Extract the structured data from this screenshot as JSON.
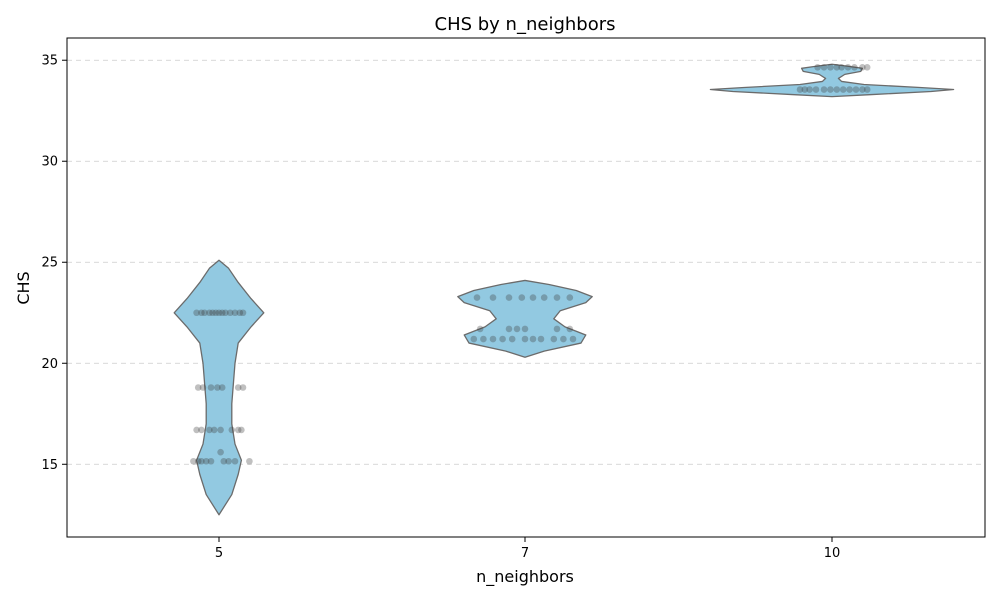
{
  "chart_data": {
    "type": "violin",
    "title": "CHS by n_neighbors",
    "xlabel": "n_neighbors",
    "ylabel": "CHS",
    "categories": [
      "5",
      "7",
      "10"
    ],
    "ylim": [
      11.4,
      36.1
    ],
    "yticks": [
      15,
      20,
      25,
      30,
      35
    ],
    "grid": "y-dashed",
    "colors": {
      "violin_fill": "#92c9e1",
      "violin_edge": "#6b6b6b",
      "points": "#3a3a3a",
      "grid": "#cccccc"
    },
    "groups": [
      {
        "category": "5",
        "range": [
          12.5,
          25.1
        ],
        "violin_profile": [
          [
            12.5,
            0.0
          ],
          [
            13.5,
            0.08
          ],
          [
            14.5,
            0.12
          ],
          [
            15.2,
            0.14
          ],
          [
            16.0,
            0.1
          ],
          [
            17.0,
            0.08
          ],
          [
            18.0,
            0.08
          ],
          [
            19.0,
            0.09
          ],
          [
            20.0,
            0.1
          ],
          [
            21.0,
            0.12
          ],
          [
            21.8,
            0.2
          ],
          [
            22.5,
            0.28
          ],
          [
            23.2,
            0.2
          ],
          [
            24.0,
            0.12
          ],
          [
            24.7,
            0.06
          ],
          [
            25.1,
            0.0
          ]
        ],
        "points": [
          [
            -0.14,
            22.5
          ],
          [
            -0.11,
            22.5
          ],
          [
            -0.09,
            22.5
          ],
          [
            -0.06,
            22.5
          ],
          [
            -0.04,
            22.5
          ],
          [
            -0.02,
            22.5
          ],
          [
            0.0,
            22.5
          ],
          [
            0.02,
            22.5
          ],
          [
            0.04,
            22.5
          ],
          [
            0.07,
            22.5
          ],
          [
            0.1,
            22.5
          ],
          [
            0.13,
            22.5
          ],
          [
            0.15,
            22.5
          ],
          [
            -0.13,
            18.8
          ],
          [
            -0.1,
            18.8
          ],
          [
            -0.05,
            18.8
          ],
          [
            -0.01,
            18.8
          ],
          [
            0.02,
            18.8
          ],
          [
            0.12,
            18.8
          ],
          [
            0.15,
            18.8
          ],
          [
            -0.14,
            16.7
          ],
          [
            -0.11,
            16.7
          ],
          [
            -0.06,
            16.7
          ],
          [
            -0.03,
            16.7
          ],
          [
            0.01,
            16.7
          ],
          [
            0.08,
            16.7
          ],
          [
            0.12,
            16.7
          ],
          [
            0.14,
            16.7
          ],
          [
            0.01,
            15.6
          ],
          [
            -0.16,
            15.15
          ],
          [
            -0.13,
            15.15
          ],
          [
            -0.11,
            15.15
          ],
          [
            -0.08,
            15.15
          ],
          [
            -0.05,
            15.15
          ],
          [
            0.03,
            15.15
          ],
          [
            0.06,
            15.15
          ],
          [
            0.1,
            15.15
          ],
          [
            0.19,
            15.15
          ]
        ]
      },
      {
        "category": "7",
        "range": [
          20.3,
          24.1
        ],
        "violin_profile": [
          [
            20.3,
            0.0
          ],
          [
            20.6,
            0.12
          ],
          [
            21.0,
            0.35
          ],
          [
            21.4,
            0.38
          ],
          [
            21.8,
            0.25
          ],
          [
            22.2,
            0.18
          ],
          [
            22.6,
            0.22
          ],
          [
            23.0,
            0.38
          ],
          [
            23.3,
            0.42
          ],
          [
            23.6,
            0.32
          ],
          [
            23.9,
            0.15
          ],
          [
            24.1,
            0.0
          ]
        ],
        "points": [
          [
            -0.3,
            23.25
          ],
          [
            -0.2,
            23.25
          ],
          [
            -0.1,
            23.25
          ],
          [
            -0.02,
            23.25
          ],
          [
            0.05,
            23.25
          ],
          [
            0.12,
            23.25
          ],
          [
            0.2,
            23.25
          ],
          [
            0.28,
            23.25
          ],
          [
            -0.28,
            21.7
          ],
          [
            -0.1,
            21.7
          ],
          [
            -0.05,
            21.7
          ],
          [
            0.0,
            21.7
          ],
          [
            0.2,
            21.7
          ],
          [
            0.28,
            21.7
          ],
          [
            -0.32,
            21.2
          ],
          [
            -0.26,
            21.2
          ],
          [
            -0.2,
            21.2
          ],
          [
            -0.14,
            21.2
          ],
          [
            -0.08,
            21.2
          ],
          [
            0.0,
            21.2
          ],
          [
            0.05,
            21.2
          ],
          [
            0.1,
            21.2
          ],
          [
            0.18,
            21.2
          ],
          [
            0.24,
            21.2
          ],
          [
            0.3,
            21.2
          ]
        ]
      },
      {
        "category": "10",
        "range": [
          33.2,
          34.8
        ],
        "violin_profile": [
          [
            33.2,
            0.0
          ],
          [
            33.3,
            0.25
          ],
          [
            33.45,
            0.62
          ],
          [
            33.55,
            0.76
          ],
          [
            33.65,
            0.55
          ],
          [
            33.8,
            0.2
          ],
          [
            33.95,
            0.06
          ],
          [
            34.1,
            0.04
          ],
          [
            34.3,
            0.08
          ],
          [
            34.45,
            0.18
          ],
          [
            34.6,
            0.19
          ],
          [
            34.7,
            0.1
          ],
          [
            34.8,
            0.0
          ]
        ],
        "points": [
          [
            -0.09,
            34.65
          ],
          [
            -0.05,
            34.65
          ],
          [
            -0.01,
            34.65
          ],
          [
            0.03,
            34.65
          ],
          [
            0.06,
            34.65
          ],
          [
            0.1,
            34.65
          ],
          [
            0.14,
            34.65
          ],
          [
            0.19,
            34.65
          ],
          [
            0.22,
            34.65
          ],
          [
            -0.2,
            33.55
          ],
          [
            -0.17,
            33.55
          ],
          [
            -0.14,
            33.55
          ],
          [
            -0.1,
            33.55
          ],
          [
            -0.05,
            33.55
          ],
          [
            -0.01,
            33.55
          ],
          [
            0.03,
            33.55
          ],
          [
            0.07,
            33.55
          ],
          [
            0.11,
            33.55
          ],
          [
            0.15,
            33.55
          ],
          [
            0.19,
            33.55
          ],
          [
            0.22,
            33.55
          ]
        ]
      }
    ]
  }
}
